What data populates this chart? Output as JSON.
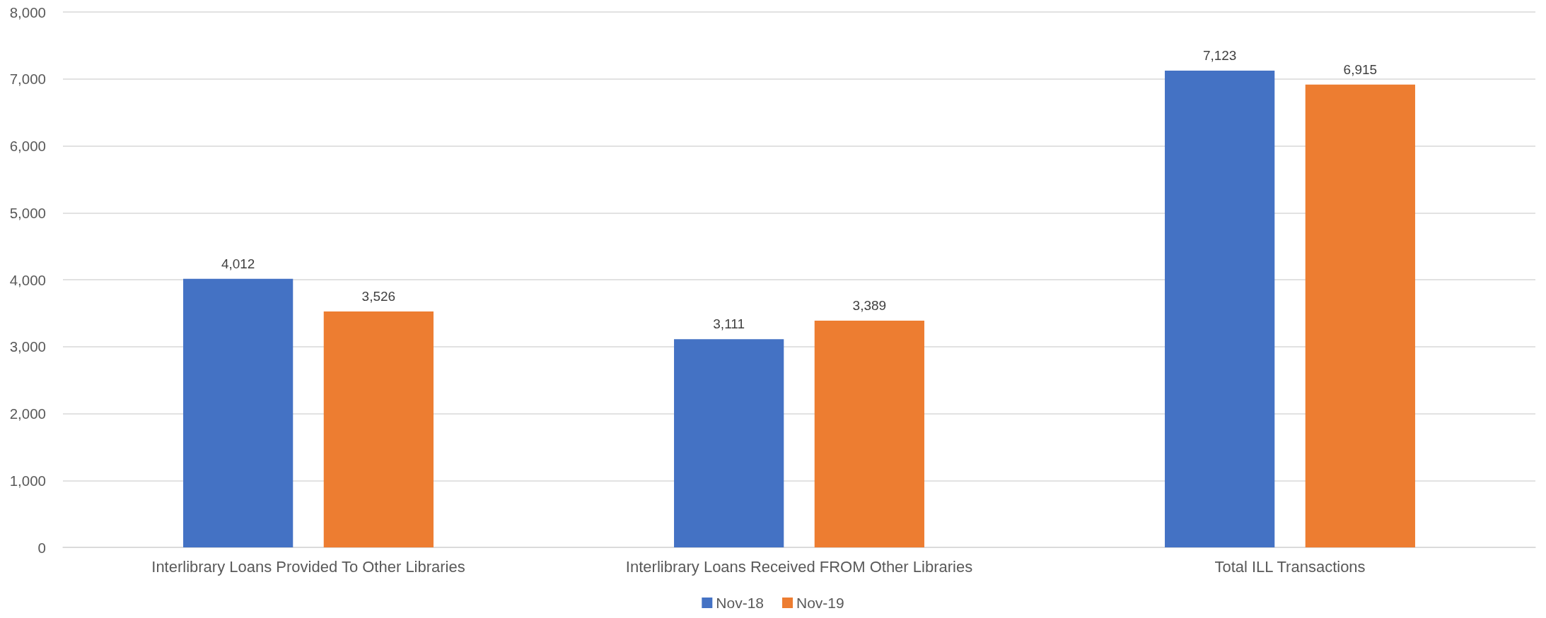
{
  "chart_data": {
    "type": "bar",
    "categories": [
      "Interlibrary Loans Provided To Other Libraries",
      "Interlibrary Loans Received FROM Other Libraries",
      "Total ILL Transactions"
    ],
    "series": [
      {
        "name": "Nov-18",
        "color": "#4472c4",
        "values": [
          4012,
          3111,
          7123
        ],
        "value_labels": [
          "4,012",
          "3,111",
          "7,123"
        ]
      },
      {
        "name": "Nov-19",
        "color": "#ed7d31",
        "values": [
          3526,
          3389,
          6915
        ],
        "value_labels": [
          "3,526",
          "3,389",
          "6,915"
        ]
      }
    ],
    "ylim": [
      0,
      8000
    ],
    "yticks": [
      {
        "value": 0,
        "label": "0"
      },
      {
        "value": 1000,
        "label": "1,000"
      },
      {
        "value": 2000,
        "label": "2,000"
      },
      {
        "value": 3000,
        "label": "3,000"
      },
      {
        "value": 4000,
        "label": "4,000"
      },
      {
        "value": 5000,
        "label": "5,000"
      },
      {
        "value": 6000,
        "label": "6,000"
      },
      {
        "value": 7000,
        "label": "7,000"
      },
      {
        "value": 8000,
        "label": "8,000"
      }
    ],
    "grid": "y",
    "legend": "bottom"
  }
}
